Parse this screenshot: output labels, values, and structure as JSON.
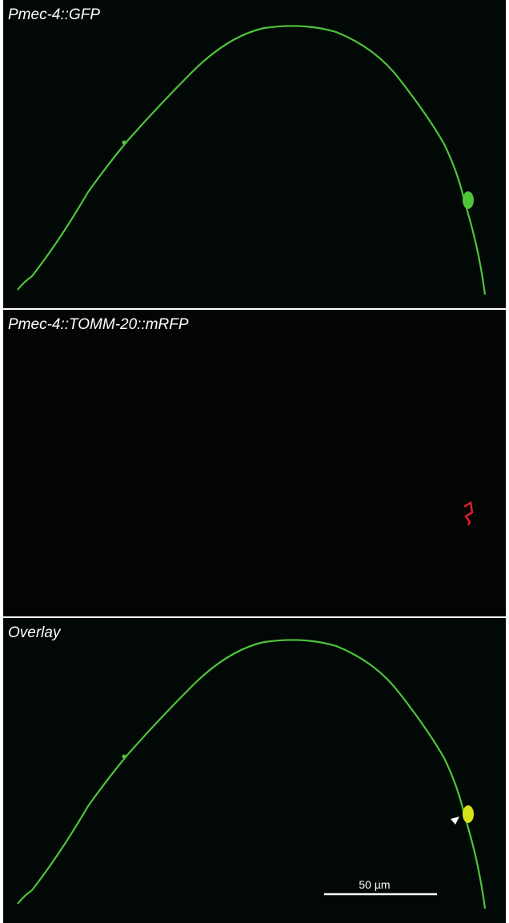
{
  "panels": [
    {
      "label": "Pmec-4::GFP"
    },
    {
      "label": "Pmec-4::TOMM-20::mRFP"
    },
    {
      "label": "Overlay"
    }
  ],
  "scale_bar": {
    "label": "50 µm"
  }
}
